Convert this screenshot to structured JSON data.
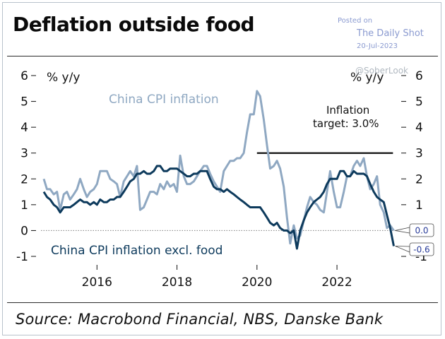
{
  "header": {
    "title": "Deflation outside food",
    "posted_label": "Posted on",
    "publisher": "The Daily Shot",
    "posted_date": "20-Jul-2023",
    "watermark": "@SoberLook"
  },
  "footer": {
    "source": "Source: Macrobond Financial, NBS, Danske Bank"
  },
  "chart_data": {
    "type": "line",
    "title": "Deflation outside food",
    "ylabel_left": "% y/y",
    "ylabel_right": "% y/y",
    "ylim": [
      -1,
      6
    ],
    "yticks": [
      "6",
      "5",
      "4",
      "3",
      "2",
      "1",
      "0",
      "-1"
    ],
    "yticks_right": [
      "6",
      "5",
      "4",
      "3",
      "2",
      "1",
      "0",
      "-1"
    ],
    "xlim": [
      2014.6,
      2023.5
    ],
    "xticks": [
      "2016",
      "2018",
      "2020",
      "2022"
    ],
    "grid": false,
    "colors": {
      "headline": "#8fa8c2",
      "core": "#0d3a5c",
      "target": "#111111",
      "endlabel": "#2a3d9a"
    },
    "reference_line": {
      "value": 3.0,
      "from": 2020.0,
      "to": 2023.4,
      "label_line1": "Inflation",
      "label_line2": "target: 3.0%"
    },
    "zero_line": {
      "value": 0,
      "style": "dotted"
    },
    "series": [
      {
        "name": "China CPI inflation",
        "role": "headline",
        "end_label": "0.0",
        "points": [
          [
            2014.67,
            2.0
          ],
          [
            2014.75,
            1.6
          ],
          [
            2014.83,
            1.6
          ],
          [
            2014.92,
            1.4
          ],
          [
            2015.0,
            1.5
          ],
          [
            2015.08,
            0.8
          ],
          [
            2015.17,
            1.4
          ],
          [
            2015.25,
            1.5
          ],
          [
            2015.33,
            1.2
          ],
          [
            2015.42,
            1.4
          ],
          [
            2015.5,
            1.6
          ],
          [
            2015.58,
            2.0
          ],
          [
            2015.67,
            1.6
          ],
          [
            2015.75,
            1.3
          ],
          [
            2015.83,
            1.5
          ],
          [
            2015.92,
            1.6
          ],
          [
            2016.0,
            1.8
          ],
          [
            2016.08,
            2.3
          ],
          [
            2016.17,
            2.3
          ],
          [
            2016.25,
            2.3
          ],
          [
            2016.33,
            2.0
          ],
          [
            2016.42,
            1.9
          ],
          [
            2016.5,
            1.8
          ],
          [
            2016.58,
            1.3
          ],
          [
            2016.67,
            1.9
          ],
          [
            2016.75,
            2.1
          ],
          [
            2016.83,
            2.3
          ],
          [
            2016.92,
            2.1
          ],
          [
            2017.0,
            2.5
          ],
          [
            2017.08,
            0.8
          ],
          [
            2017.17,
            0.9
          ],
          [
            2017.25,
            1.2
          ],
          [
            2017.33,
            1.5
          ],
          [
            2017.42,
            1.5
          ],
          [
            2017.5,
            1.4
          ],
          [
            2017.58,
            1.8
          ],
          [
            2017.67,
            1.6
          ],
          [
            2017.75,
            1.9
          ],
          [
            2017.83,
            1.7
          ],
          [
            2017.92,
            1.8
          ],
          [
            2018.0,
            1.5
          ],
          [
            2018.08,
            2.9
          ],
          [
            2018.17,
            2.1
          ],
          [
            2018.25,
            1.8
          ],
          [
            2018.33,
            1.8
          ],
          [
            2018.42,
            1.9
          ],
          [
            2018.5,
            2.1
          ],
          [
            2018.58,
            2.3
          ],
          [
            2018.67,
            2.5
          ],
          [
            2018.75,
            2.5
          ],
          [
            2018.83,
            2.2
          ],
          [
            2018.92,
            1.9
          ],
          [
            2019.0,
            1.7
          ],
          [
            2019.08,
            1.5
          ],
          [
            2019.17,
            2.3
          ],
          [
            2019.25,
            2.5
          ],
          [
            2019.33,
            2.7
          ],
          [
            2019.42,
            2.7
          ],
          [
            2019.5,
            2.8
          ],
          [
            2019.58,
            2.8
          ],
          [
            2019.67,
            3.0
          ],
          [
            2019.75,
            3.8
          ],
          [
            2019.83,
            4.5
          ],
          [
            2019.92,
            4.5
          ],
          [
            2020.0,
            5.4
          ],
          [
            2020.08,
            5.2
          ],
          [
            2020.17,
            4.3
          ],
          [
            2020.25,
            3.3
          ],
          [
            2020.33,
            2.4
          ],
          [
            2020.42,
            2.5
          ],
          [
            2020.5,
            2.7
          ],
          [
            2020.58,
            2.4
          ],
          [
            2020.67,
            1.7
          ],
          [
            2020.75,
            0.5
          ],
          [
            2020.83,
            -0.5
          ],
          [
            2020.92,
            0.2
          ],
          [
            2021.0,
            -0.3
          ],
          [
            2021.08,
            -0.2
          ],
          [
            2021.17,
            0.4
          ],
          [
            2021.25,
            0.9
          ],
          [
            2021.33,
            1.3
          ],
          [
            2021.42,
            1.1
          ],
          [
            2021.5,
            1.0
          ],
          [
            2021.58,
            0.8
          ],
          [
            2021.67,
            0.7
          ],
          [
            2021.75,
            1.5
          ],
          [
            2021.83,
            2.3
          ],
          [
            2021.92,
            1.5
          ],
          [
            2022.0,
            0.9
          ],
          [
            2022.08,
            0.9
          ],
          [
            2022.17,
            1.5
          ],
          [
            2022.25,
            2.1
          ],
          [
            2022.33,
            2.1
          ],
          [
            2022.42,
            2.5
          ],
          [
            2022.5,
            2.7
          ],
          [
            2022.58,
            2.5
          ],
          [
            2022.67,
            2.8
          ],
          [
            2022.75,
            2.1
          ],
          [
            2022.83,
            1.6
          ],
          [
            2022.92,
            1.8
          ],
          [
            2023.0,
            2.1
          ],
          [
            2023.08,
            1.0
          ],
          [
            2023.17,
            0.7
          ],
          [
            2023.25,
            0.1
          ],
          [
            2023.33,
            0.2
          ],
          [
            2023.42,
            0.0
          ]
        ]
      },
      {
        "name": "China CPI inflation excl. food",
        "role": "core",
        "end_label": "-0.6",
        "points": [
          [
            2014.67,
            1.5
          ],
          [
            2014.75,
            1.3
          ],
          [
            2014.83,
            1.2
          ],
          [
            2014.92,
            1.0
          ],
          [
            2015.0,
            0.9
          ],
          [
            2015.08,
            0.7
          ],
          [
            2015.17,
            0.9
          ],
          [
            2015.25,
            0.9
          ],
          [
            2015.33,
            0.9
          ],
          [
            2015.42,
            1.0
          ],
          [
            2015.5,
            1.1
          ],
          [
            2015.58,
            1.2
          ],
          [
            2015.67,
            1.1
          ],
          [
            2015.75,
            1.1
          ],
          [
            2015.83,
            1.0
          ],
          [
            2015.92,
            1.1
          ],
          [
            2016.0,
            1.0
          ],
          [
            2016.08,
            1.2
          ],
          [
            2016.17,
            1.1
          ],
          [
            2016.25,
            1.1
          ],
          [
            2016.33,
            1.2
          ],
          [
            2016.42,
            1.2
          ],
          [
            2016.5,
            1.3
          ],
          [
            2016.58,
            1.3
          ],
          [
            2016.67,
            1.5
          ],
          [
            2016.75,
            1.7
          ],
          [
            2016.83,
            1.9
          ],
          [
            2016.92,
            2.0
          ],
          [
            2017.0,
            2.2
          ],
          [
            2017.08,
            2.2
          ],
          [
            2017.17,
            2.3
          ],
          [
            2017.25,
            2.2
          ],
          [
            2017.33,
            2.2
          ],
          [
            2017.42,
            2.3
          ],
          [
            2017.5,
            2.5
          ],
          [
            2017.58,
            2.5
          ],
          [
            2017.67,
            2.3
          ],
          [
            2017.75,
            2.3
          ],
          [
            2017.83,
            2.4
          ],
          [
            2017.92,
            2.4
          ],
          [
            2018.0,
            2.4
          ],
          [
            2018.08,
            2.3
          ],
          [
            2018.17,
            2.2
          ],
          [
            2018.25,
            2.1
          ],
          [
            2018.33,
            2.1
          ],
          [
            2018.42,
            2.2
          ],
          [
            2018.5,
            2.2
          ],
          [
            2018.58,
            2.3
          ],
          [
            2018.67,
            2.3
          ],
          [
            2018.75,
            2.3
          ],
          [
            2018.83,
            2.0
          ],
          [
            2018.92,
            1.7
          ],
          [
            2019.0,
            1.6
          ],
          [
            2019.08,
            1.6
          ],
          [
            2019.17,
            1.5
          ],
          [
            2019.25,
            1.6
          ],
          [
            2019.33,
            1.5
          ],
          [
            2019.42,
            1.4
          ],
          [
            2019.5,
            1.3
          ],
          [
            2019.58,
            1.2
          ],
          [
            2019.67,
            1.1
          ],
          [
            2019.75,
            1.0
          ],
          [
            2019.83,
            0.9
          ],
          [
            2019.92,
            0.9
          ],
          [
            2020.0,
            0.9
          ],
          [
            2020.08,
            0.9
          ],
          [
            2020.17,
            0.7
          ],
          [
            2020.25,
            0.5
          ],
          [
            2020.33,
            0.3
          ],
          [
            2020.42,
            0.2
          ],
          [
            2020.5,
            0.3
          ],
          [
            2020.58,
            0.1
          ],
          [
            2020.67,
            0.0
          ],
          [
            2020.75,
            0.0
          ],
          [
            2020.83,
            -0.1
          ],
          [
            2020.92,
            0.0
          ],
          [
            2021.0,
            -0.7
          ],
          [
            2021.08,
            0.0
          ],
          [
            2021.17,
            0.4
          ],
          [
            2021.25,
            0.7
          ],
          [
            2021.33,
            0.9
          ],
          [
            2021.42,
            1.1
          ],
          [
            2021.5,
            1.2
          ],
          [
            2021.58,
            1.3
          ],
          [
            2021.67,
            1.5
          ],
          [
            2021.75,
            1.8
          ],
          [
            2021.83,
            2.0
          ],
          [
            2021.92,
            2.0
          ],
          [
            2022.0,
            2.0
          ],
          [
            2022.08,
            2.3
          ],
          [
            2022.17,
            2.3
          ],
          [
            2022.25,
            2.1
          ],
          [
            2022.33,
            2.1
          ],
          [
            2022.42,
            2.3
          ],
          [
            2022.5,
            2.2
          ],
          [
            2022.58,
            2.2
          ],
          [
            2022.67,
            2.2
          ],
          [
            2022.75,
            2.1
          ],
          [
            2022.83,
            1.8
          ],
          [
            2022.92,
            1.5
          ],
          [
            2023.0,
            1.3
          ],
          [
            2023.08,
            1.2
          ],
          [
            2023.17,
            1.1
          ],
          [
            2023.25,
            0.6
          ],
          [
            2023.33,
            0.1
          ],
          [
            2023.42,
            -0.6
          ]
        ]
      }
    ]
  }
}
